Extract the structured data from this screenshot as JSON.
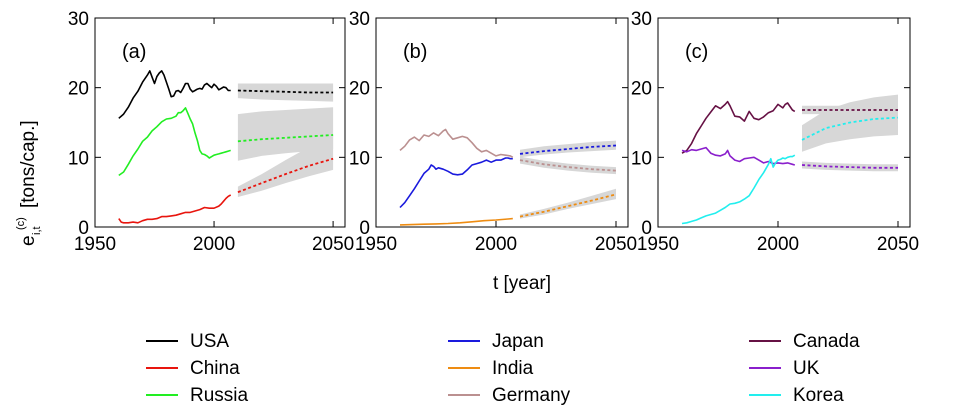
{
  "chart_data": {
    "type": "line",
    "shared": {
      "xlim": [
        1950,
        2055
      ],
      "ylim": [
        0,
        30
      ],
      "xticks": [
        1950,
        2000,
        2050
      ],
      "yticks": [
        0,
        10,
        20,
        30
      ],
      "xlabel": "t  [year]",
      "ylabel_main": "e",
      "ylabel_sub": "i,t",
      "ylabel_sup": "(c)",
      "ylabel_unit": "[tons/cap.]",
      "grid": false
    },
    "panels": [
      {
        "label": "(a)",
        "series": [
          {
            "name": "USA",
            "color": "#000000",
            "x": [
              1960,
              1962,
              1964,
              1966,
              1968,
              1970,
              1972,
              1973,
              1974,
              1975,
              1976,
              1977,
              1978,
              1979,
              1980,
              1981,
              1982,
              1983,
              1984,
              1985,
              1986,
              1987,
              1988,
              1989,
              1990,
              1991,
              1992,
              1993,
              1994,
              1995,
              1996,
              1997,
              1998,
              1999,
              2000,
              2001,
              2002,
              2003,
              2004,
              2005,
              2006,
              2007
            ],
            "y": [
              15.6,
              16.2,
              17.2,
              18.5,
              19.5,
              20.8,
              21.8,
              22.4,
              21.5,
              20.6,
              21.6,
              22.1,
              22.4,
              21.8,
              20.8,
              19.8,
              18.7,
              18.8,
              19.5,
              19.6,
              19.3,
              19.9,
              20.6,
              20.6,
              19.8,
              19.4,
              19.6,
              19.8,
              19.9,
              19.8,
              20.4,
              20.6,
              20.3,
              20.0,
              20.5,
              20.2,
              19.7,
              19.9,
              20.1,
              20.0,
              19.6,
              19.6
            ],
            "proj": {
              "x": [
                2010,
                2020,
                2030,
                2040,
                2050
              ],
              "y": [
                19.6,
                19.5,
                19.4,
                19.3,
                19.3
              ],
              "lo": [
                18.5,
                18.3,
                18.2,
                18.1,
                18.0
              ],
              "hi": [
                20.6,
                20.6,
                20.6,
                20.6,
                20.6
              ]
            }
          },
          {
            "name": "China",
            "color": "#e8150e",
            "x": [
              1960,
              1961,
              1962,
              1963,
              1964,
              1966,
              1968,
              1970,
              1972,
              1974,
              1976,
              1978,
              1980,
              1982,
              1984,
              1986,
              1988,
              1990,
              1992,
              1994,
              1996,
              1998,
              2000,
              2002,
              2003,
              2004,
              2005,
              2006,
              2007
            ],
            "y": [
              1.2,
              0.7,
              0.6,
              0.6,
              0.6,
              0.7,
              0.6,
              0.9,
              1.1,
              1.1,
              1.2,
              1.5,
              1.5,
              1.6,
              1.7,
              1.9,
              2.1,
              2.1,
              2.3,
              2.5,
              2.8,
              2.7,
              2.7,
              3.0,
              3.3,
              3.7,
              4.1,
              4.4,
              4.6
            ],
            "proj": {
              "x": [
                2010,
                2020,
                2030,
                2040,
                2050
              ],
              "y": [
                5.0,
                6.3,
                7.6,
                8.8,
                9.8
              ],
              "lo": [
                4.3,
                5.2,
                6.3,
                7.3,
                8.2
              ],
              "hi": [
                5.8,
                7.6,
                9.6,
                11.5,
                13.2
              ]
            }
          },
          {
            "name": "Russia",
            "color": "#22ee22",
            "x": [
              1960,
              1962,
              1964,
              1966,
              1968,
              1970,
              1972,
              1974,
              1976,
              1978,
              1980,
              1982,
              1984,
              1985,
              1986,
              1987,
              1988,
              1989,
              1990,
              1991,
              1992,
              1993,
              1994,
              1995,
              1996,
              1997,
              1998,
              1999,
              2000,
              2001,
              2002,
              2003,
              2004,
              2005,
              2006,
              2007
            ],
            "y": [
              7.4,
              7.9,
              9.0,
              10.2,
              11.2,
              12.3,
              12.9,
              13.8,
              14.4,
              15.1,
              15.5,
              15.6,
              15.9,
              16.4,
              16.4,
              16.7,
              17.1,
              16.3,
              15.5,
              14.8,
              13.5,
              12.4,
              11.0,
              10.5,
              10.4,
              10.2,
              9.9,
              10.1,
              10.3,
              10.4,
              10.5,
              10.6,
              10.7,
              10.8,
              10.9,
              11.0
            ],
            "proj": {
              "x": [
                2010,
                2020,
                2030,
                2040,
                2050
              ],
              "y": [
                12.3,
                12.6,
                12.8,
                13.0,
                13.2
              ],
              "lo": [
                9.5,
                10.2,
                10.6,
                10.9,
                11.2
              ],
              "hi": [
                16.2,
                16.6,
                16.8,
                17.0,
                17.2
              ]
            }
          }
        ]
      },
      {
        "label": "(b)",
        "series": [
          {
            "name": "Japan",
            "color": "#1a1add",
            "x": [
              1960,
              1962,
              1964,
              1966,
              1968,
              1970,
              1972,
              1973,
              1974,
              1975,
              1976,
              1978,
              1980,
              1982,
              1984,
              1986,
              1988,
              1990,
              1992,
              1994,
              1996,
              1998,
              2000,
              2002,
              2004,
              2005,
              2006,
              2007
            ],
            "y": [
              2.8,
              3.5,
              4.5,
              5.5,
              6.6,
              7.7,
              8.3,
              8.9,
              8.7,
              8.3,
              8.5,
              8.3,
              8.0,
              7.6,
              7.5,
              7.6,
              8.2,
              8.9,
              9.1,
              9.3,
              9.6,
              9.3,
              9.6,
              9.6,
              9.9,
              9.9,
              9.8,
              9.8
            ],
            "proj": {
              "x": [
                2010,
                2020,
                2030,
                2040,
                2050
              ],
              "y": [
                10.5,
                10.9,
                11.2,
                11.5,
                11.7
              ],
              "lo": [
                10.0,
                10.4,
                10.7,
                10.9,
                11.1
              ],
              "hi": [
                11.1,
                11.6,
                11.9,
                12.2,
                12.4
              ]
            }
          },
          {
            "name": "India",
            "color": "#ee8c12",
            "x": [
              1960,
              1965,
              1970,
              1975,
              1980,
              1985,
              1990,
              1995,
              2000,
              2005,
              2007
            ],
            "y": [
              0.3,
              0.35,
              0.4,
              0.45,
              0.5,
              0.6,
              0.75,
              0.9,
              1.0,
              1.15,
              1.2
            ],
            "proj": {
              "x": [
                2010,
                2020,
                2030,
                2040,
                2050
              ],
              "y": [
                1.5,
                2.2,
                3.0,
                3.8,
                4.7
              ],
              "lo": [
                1.2,
                1.8,
                2.6,
                3.3,
                4.0
              ],
              "hi": [
                1.8,
                2.6,
                3.5,
                4.5,
                5.5
              ]
            }
          },
          {
            "name": "Germany",
            "color": "#bb9090",
            "x": [
              1960,
              1962,
              1964,
              1966,
              1968,
              1970,
              1972,
              1974,
              1976,
              1978,
              1979,
              1980,
              1982,
              1984,
              1986,
              1988,
              1990,
              1992,
              1994,
              1996,
              1998,
              2000,
              2002,
              2004,
              2006,
              2007
            ],
            "y": [
              11.0,
              11.6,
              12.5,
              12.9,
              12.4,
              13.2,
              13.0,
              13.5,
              13.1,
              13.8,
              14.0,
              13.4,
              12.6,
              12.8,
              13.0,
              12.8,
              12.1,
              11.3,
              10.8,
              11.0,
              10.6,
              10.2,
              10.4,
              10.3,
              10.2,
              10.0
            ],
            "proj": {
              "x": [
                2010,
                2020,
                2030,
                2040,
                2050
              ],
              "y": [
                9.6,
                9.0,
                8.6,
                8.3,
                8.1
              ],
              "lo": [
                9.1,
                8.5,
                8.1,
                7.8,
                7.6
              ],
              "hi": [
                10.1,
                9.5,
                9.1,
                8.8,
                8.6
              ]
            }
          }
        ]
      },
      {
        "label": "(c)",
        "series": [
          {
            "name": "Canada",
            "color": "#661144",
            "x": [
              1960,
              1962,
              1964,
              1966,
              1968,
              1970,
              1972,
              1974,
              1976,
              1978,
              1979,
              1980,
              1982,
              1984,
              1986,
              1988,
              1990,
              1992,
              1994,
              1996,
              1998,
              2000,
              2002,
              2003,
              2004,
              2005,
              2006,
              2007
            ],
            "y": [
              10.6,
              11.0,
              12.0,
              13.4,
              14.5,
              15.6,
              16.5,
              17.4,
              17.0,
              17.6,
              18.0,
              17.4,
              15.9,
              15.8,
              15.2,
              16.6,
              15.6,
              15.4,
              15.8,
              16.4,
              16.7,
              17.6,
              17.1,
              17.6,
              17.8,
              17.3,
              16.8,
              16.6
            ],
            "proj": {
              "x": [
                2010,
                2020,
                2030,
                2040,
                2050
              ],
              "y": [
                16.8,
                16.8,
                16.8,
                16.8,
                16.8
              ],
              "lo": [
                16.2,
                16.2,
                16.2,
                16.2,
                16.2
              ],
              "hi": [
                17.4,
                17.4,
                17.4,
                17.4,
                17.4
              ]
            }
          },
          {
            "name": "UK",
            "color": "#8a1fcc",
            "x": [
              1960,
              1962,
              1964,
              1966,
              1968,
              1970,
              1972,
              1974,
              1976,
              1978,
              1979,
              1980,
              1982,
              1984,
              1986,
              1988,
              1990,
              1992,
              1994,
              1996,
              1998,
              2000,
              2002,
              2004,
              2006,
              2007
            ],
            "y": [
              11.0,
              10.8,
              11.1,
              11.0,
              11.2,
              11.4,
              10.6,
              10.3,
              10.2,
              10.5,
              11.0,
              10.2,
              9.6,
              9.4,
              9.8,
              9.9,
              10.0,
              9.6,
              9.2,
              9.4,
              9.1,
              9.2,
              9.1,
              9.2,
              9.0,
              8.9
            ],
            "proj": {
              "x": [
                2010,
                2020,
                2030,
                2040,
                2050
              ],
              "y": [
                8.9,
                8.7,
                8.6,
                8.5,
                8.5
              ],
              "lo": [
                8.4,
                8.2,
                8.1,
                8.0,
                8.0
              ],
              "hi": [
                9.4,
                9.2,
                9.1,
                9.0,
                9.0
              ]
            }
          },
          {
            "name": "Korea",
            "color": "#22eeee",
            "x": [
              1960,
              1962,
              1964,
              1966,
              1968,
              1970,
              1972,
              1974,
              1976,
              1978,
              1980,
              1982,
              1984,
              1986,
              1988,
              1990,
              1992,
              1994,
              1996,
              1997,
              1998,
              1999,
              2000,
              2001,
              2002,
              2003,
              2004,
              2005,
              2006,
              2007
            ],
            "y": [
              0.5,
              0.6,
              0.8,
              1.0,
              1.3,
              1.6,
              1.8,
              2.0,
              2.4,
              2.8,
              3.3,
              3.4,
              3.6,
              4.0,
              4.5,
              5.6,
              6.8,
              7.8,
              9.0,
              9.8,
              8.6,
              9.2,
              9.6,
              9.7,
              9.9,
              9.8,
              10.0,
              10.1,
              10.1,
              10.3
            ],
            "proj": {
              "x": [
                2010,
                2020,
                2030,
                2040,
                2050
              ],
              "y": [
                12.5,
                14.2,
                15.0,
                15.5,
                15.7
              ],
              "lo": [
                10.8,
                12.0,
                12.6,
                13.0,
                13.2
              ],
              "hi": [
                14.6,
                16.8,
                17.9,
                18.6,
                19.0
              ]
            }
          }
        ]
      }
    ],
    "legend_placement": "bottom"
  }
}
